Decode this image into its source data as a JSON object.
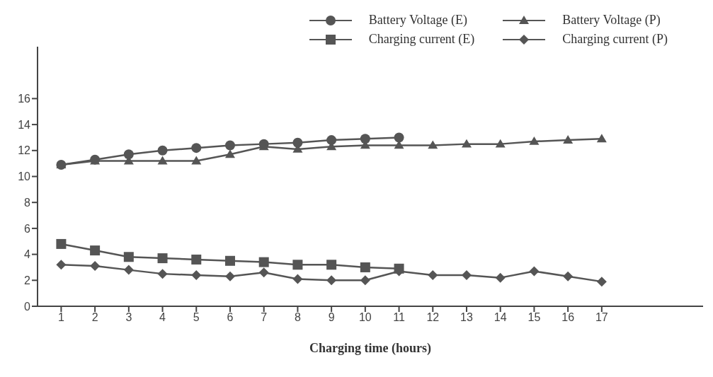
{
  "chart_data": {
    "type": "line",
    "xlabel": "Charging time (hours)",
    "x": [
      1,
      2,
      3,
      4,
      5,
      6,
      7,
      8,
      9,
      10,
      11,
      12,
      13,
      14,
      15,
      16,
      17
    ],
    "xlim": [
      0.3,
      20
    ],
    "xticks": [
      1,
      2,
      3,
      4,
      5,
      6,
      7,
      8,
      9,
      10,
      11,
      12,
      13,
      14,
      15,
      16,
      17
    ],
    "ylim": [
      0,
      20
    ],
    "yticks": [
      0,
      2,
      4,
      6,
      8,
      10,
      12,
      14,
      16
    ],
    "grid": false,
    "legend": "top right",
    "line_style": "solid",
    "series": [
      {
        "name": "Battery Voltage (E)",
        "color": "#555555",
        "marker": "circle",
        "values": [
          10.9,
          11.3,
          11.7,
          12.0,
          12.2,
          12.4,
          12.5,
          12.6,
          12.8,
          12.9,
          13.0,
          null,
          null,
          null,
          null,
          null,
          null
        ]
      },
      {
        "name": "Battery Voltage (P)",
        "color": "#555555",
        "marker": "triangle",
        "values": [
          10.9,
          11.2,
          11.2,
          11.2,
          11.2,
          11.7,
          12.3,
          12.1,
          12.3,
          12.4,
          12.4,
          12.4,
          12.5,
          12.5,
          12.7,
          12.8,
          12.9
        ]
      },
      {
        "name": "Charging current (E)",
        "color": "#555555",
        "marker": "square",
        "values": [
          4.8,
          4.3,
          3.8,
          3.7,
          3.6,
          3.5,
          3.4,
          3.2,
          3.2,
          3.0,
          2.9,
          null,
          null,
          null,
          null,
          null,
          null
        ]
      },
      {
        "name": "Charging current (P)",
        "color": "#555555",
        "marker": "diamond",
        "values": [
          3.2,
          3.1,
          2.8,
          2.5,
          2.4,
          2.3,
          2.6,
          2.1,
          2.0,
          2.0,
          2.7,
          2.4,
          2.4,
          2.2,
          2.7,
          2.3,
          1.9
        ]
      }
    ]
  }
}
